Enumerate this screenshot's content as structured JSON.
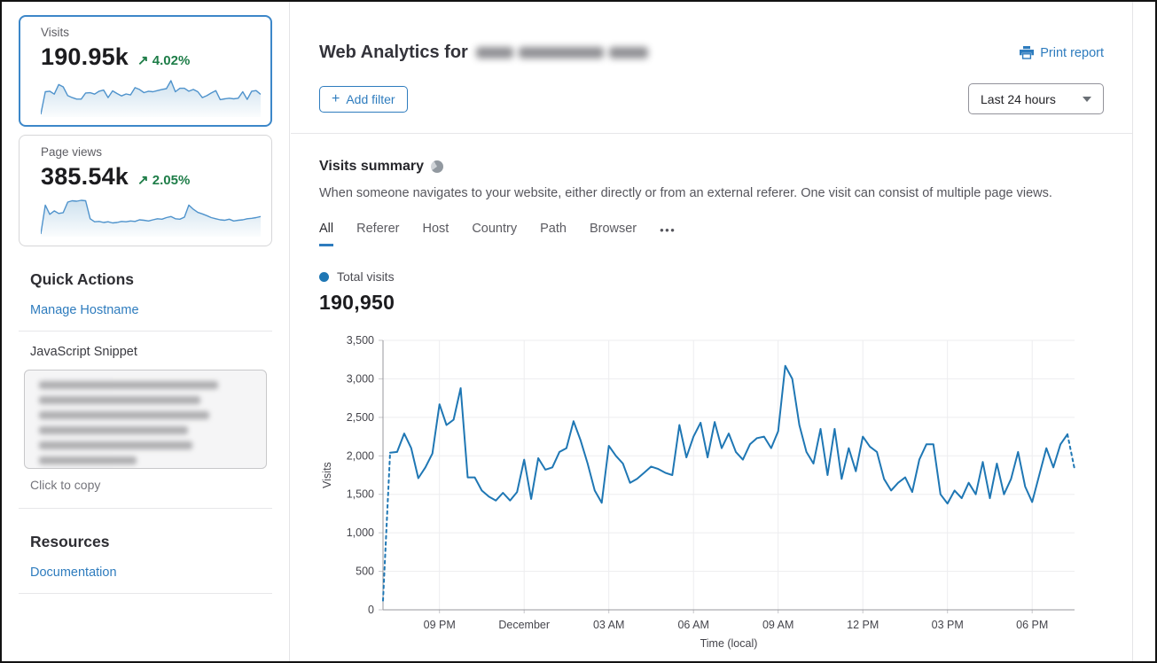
{
  "sidebar": {
    "cards": [
      {
        "label": "Visits",
        "value": "190.95k",
        "delta": "4.02%",
        "selected": true
      },
      {
        "label": "Page views",
        "value": "385.54k",
        "delta": "2.05%",
        "selected": false
      }
    ],
    "quick_actions": {
      "title": "Quick Actions",
      "manage_hostname_label": "Manage Hostname",
      "snippet_label": "JavaScript Snippet",
      "snippet_hint": "Click to copy"
    },
    "resources": {
      "title": "Resources",
      "documentation_label": "Documentation"
    }
  },
  "header": {
    "title_prefix": "Web Analytics for",
    "print_label": "Print report",
    "add_filter_label": "Add filter",
    "time_range": "Last 24 hours"
  },
  "summary": {
    "title": "Visits summary",
    "description": "When someone navigates to your website, either directly or from an external referer. One visit can consist of multiple page views.",
    "tabs": [
      "All",
      "Referer",
      "Host",
      "Country",
      "Path",
      "Browser"
    ],
    "active_tab": "All",
    "legend_label": "Total visits",
    "total_value": "190,950"
  },
  "icons": {
    "delta_up_arrow": "↗",
    "plus": "+",
    "more_tabs": "•••"
  },
  "colors": {
    "accent_link": "#2e7cbe",
    "chart_line": "#1f77b4",
    "delta_green": "#1e7d48",
    "selected_card_border": "#3c87c9"
  },
  "chart_data": [
    {
      "name": "visits-summary-line",
      "type": "line",
      "title": "Total visits",
      "xlabel": "Time (local)",
      "ylabel": "Visits",
      "ylim": [
        0,
        3500
      ],
      "y_ticks": [
        0,
        500,
        1000,
        1500,
        2000,
        2500,
        3000,
        3500
      ],
      "x_tick_indices": [
        8,
        20,
        32,
        44,
        56,
        68,
        80,
        92
      ],
      "x_tick_labels": [
        "09 PM",
        "December",
        "03 AM",
        "06 AM",
        "09 AM",
        "12 PM",
        "03 PM",
        "06 PM"
      ],
      "interval_minutes": 15,
      "grid": true,
      "legend_position": "top-left",
      "line_color": "#1f77b4",
      "dashed_head_points": 2,
      "dashed_tail_points": 2,
      "values": [
        120,
        2040,
        2050,
        2290,
        2100,
        1710,
        1850,
        2030,
        2670,
        2400,
        2470,
        2880,
        1720,
        1720,
        1550,
        1470,
        1420,
        1520,
        1420,
        1530,
        1950,
        1440,
        1970,
        1820,
        1850,
        2050,
        2100,
        2450,
        2200,
        1900,
        1550,
        1390,
        2130,
        2000,
        1900,
        1650,
        1700,
        1780,
        1860,
        1830,
        1780,
        1750,
        2400,
        1980,
        2250,
        2430,
        1980,
        2440,
        2100,
        2290,
        2050,
        1950,
        2150,
        2230,
        2250,
        2100,
        2320,
        3170,
        3000,
        2400,
        2050,
        1900,
        2350,
        1750,
        2350,
        1700,
        2100,
        1800,
        2250,
        2120,
        2050,
        1700,
        1550,
        1650,
        1720,
        1530,
        1950,
        2150,
        2150,
        1500,
        1380,
        1550,
        1450,
        1650,
        1500,
        1920,
        1450,
        1900,
        1500,
        1700,
        2050,
        1600,
        1400,
        1750,
        2100,
        1850,
        2150,
        2280,
        1830
      ]
    },
    {
      "name": "visits-sparkline",
      "type": "area",
      "title": "Visits (last 24 hours)",
      "line_color": "#4f93cc",
      "values": [
        120,
        2050,
        2100,
        1850,
        2670,
        2470,
        1720,
        1550,
        1420,
        1420,
        1950,
        1970,
        1850,
        2100,
        2200,
        1550,
        2130,
        1900,
        1700,
        1860,
        1780,
        2400,
        2250,
        1980,
        2100,
        2050,
        2150,
        2250,
        2320,
        3000,
        2050,
        2350,
        2350,
        2100,
        2250,
        2050,
        1550,
        1720,
        1950,
        2150,
        1380,
        1450,
        1500,
        1450,
        1500,
        2050,
        1400,
        2100,
        2150,
        1830
      ]
    },
    {
      "name": "pageviews-sparkline",
      "type": "area",
      "title": "Page views (last 24 hours)",
      "line_color": "#4f93cc",
      "values": [
        120,
        6700,
        4600,
        5400,
        4800,
        5000,
        7400,
        7700,
        7600,
        7800,
        7700,
        3600,
        2900,
        3000,
        2750,
        2900,
        2650,
        2750,
        3000,
        2900,
        3100,
        3000,
        3350,
        3250,
        3100,
        3350,
        3600,
        3500,
        3850,
        4100,
        3600,
        3500,
        3950,
        6700,
        5750,
        5050,
        4700,
        4300,
        3850,
        3600,
        3350,
        3250,
        3500,
        3100,
        3250,
        3350,
        3600,
        3700,
        3850,
        4100
      ]
    }
  ]
}
